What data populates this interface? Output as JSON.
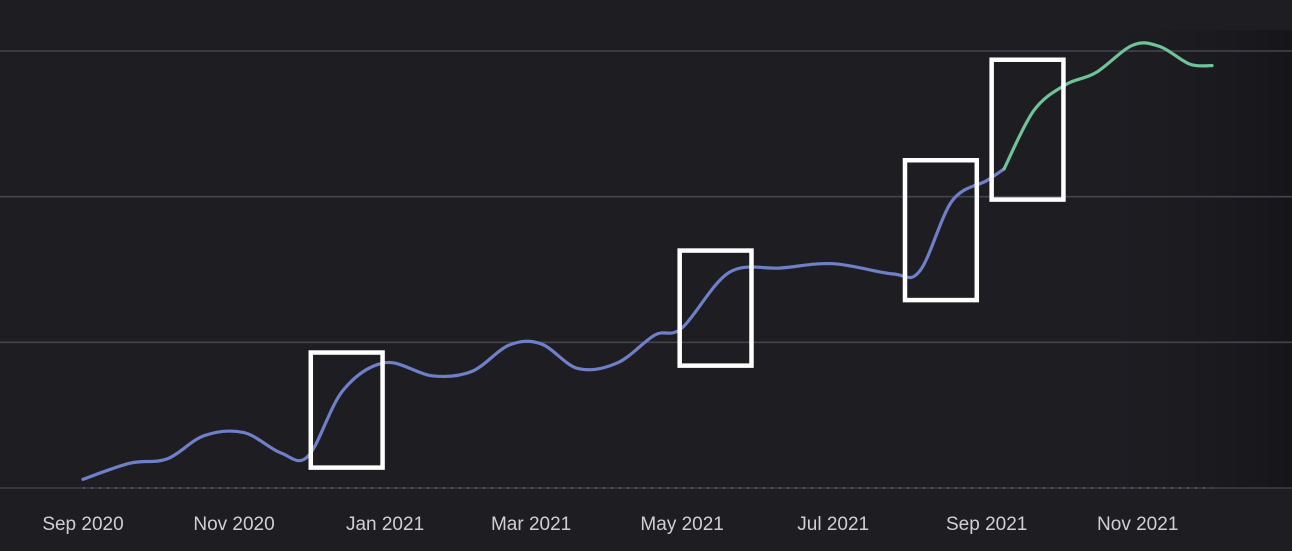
{
  "chart_data": {
    "type": "line",
    "title": "",
    "xlabel": "",
    "ylabel": "",
    "x_tick_labels": [
      "Sep 2020",
      "Nov 2020",
      "Jan 2021",
      "Mar 2021",
      "May 2021",
      "Jul 2021",
      "Sep 2021",
      "Nov 2021"
    ],
    "x_range": [
      "2020-09-01",
      "2021-12-01"
    ],
    "y_range": [
      0,
      3
    ],
    "y_ticks": [
      0,
      1,
      2,
      3
    ],
    "y_tick_labels_visible": false,
    "grid": true,
    "legend": "none",
    "series": [
      {
        "color": "#6f80c8",
        "points": [
          {
            "x": "2020-09-01",
            "y": 0.06
          },
          {
            "x": "2020-09-20",
            "y": 0.17
          },
          {
            "x": "2020-10-05",
            "y": 0.2
          },
          {
            "x": "2020-10-20",
            "y": 0.36
          },
          {
            "x": "2020-11-05",
            "y": 0.38
          },
          {
            "x": "2020-11-20",
            "y": 0.24
          },
          {
            "x": "2020-12-01",
            "y": 0.22
          },
          {
            "x": "2020-12-15",
            "y": 0.67
          },
          {
            "x": "2021-01-01",
            "y": 0.86
          },
          {
            "x": "2021-01-20",
            "y": 0.77
          },
          {
            "x": "2021-02-05",
            "y": 0.8
          },
          {
            "x": "2021-02-20",
            "y": 0.98
          },
          {
            "x": "2021-03-05",
            "y": 0.99
          },
          {
            "x": "2021-03-20",
            "y": 0.82
          },
          {
            "x": "2021-04-05",
            "y": 0.86
          },
          {
            "x": "2021-04-20",
            "y": 1.05
          },
          {
            "x": "2021-05-01",
            "y": 1.1
          },
          {
            "x": "2021-05-20",
            "y": 1.48
          },
          {
            "x": "2021-06-10",
            "y": 1.51
          },
          {
            "x": "2021-07-01",
            "y": 1.54
          },
          {
            "x": "2021-07-25",
            "y": 1.47
          },
          {
            "x": "2021-08-05",
            "y": 1.49
          },
          {
            "x": "2021-08-18",
            "y": 1.97
          },
          {
            "x": "2021-09-01",
            "y": 2.11
          },
          {
            "x": "2021-09-08",
            "y": 2.19
          }
        ]
      },
      {
        "color": "#6fc398",
        "points": [
          {
            "x": "2021-09-08",
            "y": 2.19
          },
          {
            "x": "2021-09-20",
            "y": 2.59
          },
          {
            "x": "2021-10-03",
            "y": 2.77
          },
          {
            "x": "2021-10-15",
            "y": 2.85
          },
          {
            "x": "2021-10-30",
            "y": 3.04
          },
          {
            "x": "2021-11-10",
            "y": 3.03
          },
          {
            "x": "2021-11-22",
            "y": 2.91
          },
          {
            "x": "2021-12-01",
            "y": 2.9
          }
        ]
      }
    ],
    "annotations": [
      {
        "type": "box",
        "x": [
          "2020-12-02",
          "2020-12-31"
        ],
        "y": [
          0.14,
          0.93
        ]
      },
      {
        "type": "box",
        "x": [
          "2021-04-30",
          "2021-05-29"
        ],
        "y": [
          0.84,
          1.63
        ]
      },
      {
        "type": "box",
        "x": [
          "2021-07-30",
          "2021-08-28"
        ],
        "y": [
          1.29,
          2.25
        ]
      },
      {
        "type": "box",
        "x": [
          "2021-09-03",
          "2021-10-02"
        ],
        "y": [
          1.98,
          2.94
        ]
      }
    ]
  }
}
